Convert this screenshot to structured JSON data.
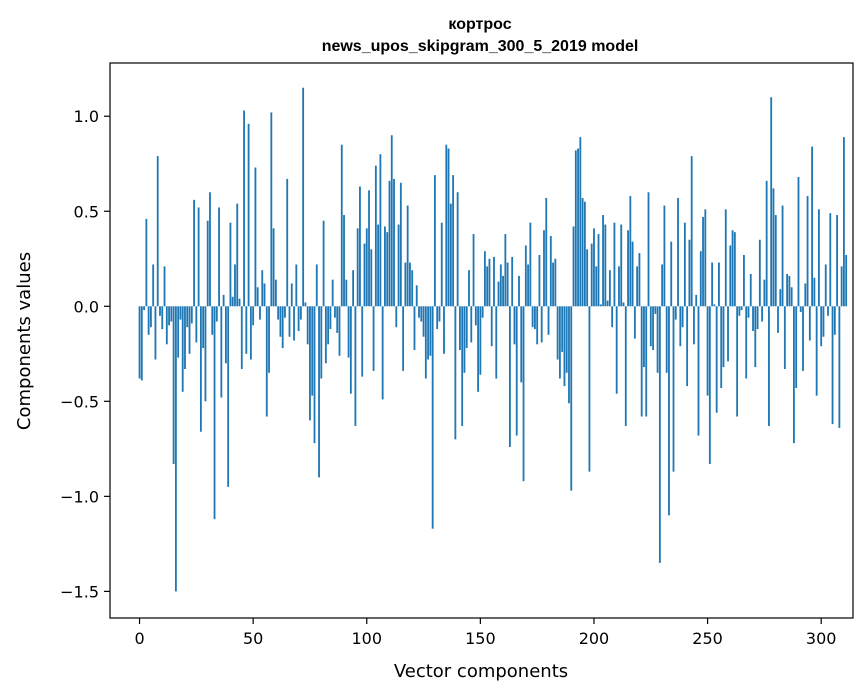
{
  "chart_data": {
    "type": "bar",
    "title_line1": "кортрос",
    "title_line2": "news_upos_skipgram_300_5_2019 model",
    "xlabel": "Vector components",
    "ylabel": "Components values",
    "xlim": [
      -13,
      314
    ],
    "ylim": [
      -1.64,
      1.28
    ],
    "xticks": [
      0,
      50,
      100,
      150,
      200,
      250,
      300
    ],
    "xtick_labels": [
      "0",
      "50",
      "100",
      "150",
      "200",
      "250",
      "300"
    ],
    "yticks": [
      1.0,
      0.5,
      0.0,
      -0.5,
      -1.0,
      -1.5
    ],
    "ytick_labels": [
      "1.0",
      "0.5",
      "0.0",
      "−0.5",
      "−1.0",
      "−1.5"
    ],
    "bar_color": "#1f77b4",
    "values": [
      -0.38,
      -0.39,
      -0.02,
      0.46,
      -0.15,
      -0.11,
      0.22,
      -0.28,
      0.79,
      -0.05,
      -0.12,
      0.21,
      -0.2,
      -0.1,
      -0.08,
      -0.83,
      -1.5,
      -0.27,
      -0.07,
      -0.45,
      -0.33,
      -0.11,
      -0.25,
      -0.09,
      0.56,
      -0.19,
      0.52,
      -0.66,
      -0.22,
      -0.5,
      0.45,
      0.6,
      -0.15,
      -1.12,
      -0.08,
      0.52,
      -0.48,
      0.06,
      -0.3,
      -0.95,
      0.44,
      0.05,
      0.22,
      0.54,
      0.04,
      -0.33,
      1.03,
      -0.25,
      0.96,
      -0.28,
      -0.1,
      0.73,
      0.1,
      -0.07,
      0.19,
      0.12,
      -0.58,
      -0.35,
      1.02,
      0.41,
      0.14,
      -0.07,
      -0.16,
      -0.22,
      -0.06,
      0.67,
      -0.16,
      0.12,
      -0.18,
      0.22,
      -0.13,
      -0.07,
      1.15,
      0.02,
      -0.2,
      -0.6,
      -0.47,
      -0.72,
      0.22,
      -0.9,
      -0.38,
      0.45,
      -0.3,
      -0.2,
      -0.12,
      0.14,
      -0.06,
      -0.14,
      -0.26,
      0.85,
      0.48,
      0.14,
      -0.27,
      -0.46,
      0.19,
      -0.63,
      0.41,
      0.63,
      -0.37,
      0.33,
      0.41,
      0.61,
      0.3,
      -0.34,
      0.74,
      0.43,
      0.8,
      -0.49,
      0.42,
      0.39,
      0.66,
      0.9,
      0.67,
      -0.11,
      0.43,
      0.65,
      -0.34,
      0.23,
      0.53,
      0.23,
      0.19,
      -0.23,
      0.11,
      -0.06,
      -0.08,
      -0.16,
      -0.38,
      -0.28,
      -0.26,
      -1.17,
      0.69,
      -0.12,
      -0.08,
      0.44,
      -0.25,
      0.85,
      0.83,
      0.54,
      0.69,
      -0.7,
      0.6,
      -0.23,
      -0.63,
      -0.35,
      -0.22,
      0.19,
      -0.19,
      0.38,
      -0.1,
      -0.45,
      -0.36,
      -0.06,
      0.29,
      0.21,
      0.25,
      -0.21,
      0.26,
      -0.38,
      0.13,
      0.22,
      0.16,
      0.38,
      0.23,
      -0.74,
      0.26,
      -0.2,
      -0.68,
      0.16,
      -0.4,
      -0.92,
      0.32,
      0.22,
      0.44,
      -0.11,
      -0.12,
      -0.2,
      0.27,
      -0.19,
      0.4,
      0.57,
      -0.15,
      0.37,
      0.23,
      0.25,
      -0.28,
      -0.38,
      -0.24,
      -0.42,
      -0.35,
      -0.51,
      -0.97,
      0.42,
      0.82,
      0.83,
      0.89,
      0.57,
      0.55,
      0.3,
      -0.87,
      0.33,
      0.41,
      0.21,
      0.38,
      0.01,
      0.48,
      0.43,
      0.03,
      0.19,
      -0.11,
      0.44,
      -0.46,
      0.21,
      0.43,
      0.02,
      -0.63,
      0.4,
      0.58,
      0.34,
      -0.17,
      0.21,
      0.28,
      -0.58,
      -0.32,
      -0.58,
      0.6,
      -0.21,
      -0.23,
      -0.04,
      -0.35,
      -1.35,
      0.22,
      0.53,
      -0.35,
      -1.1,
      0.34,
      -0.87,
      -0.07,
      0.57,
      -0.21,
      -0.11,
      0.44,
      -0.42,
      0.35,
      0.79,
      -0.2,
      0.06,
      -0.68,
      0.29,
      0.47,
      0.51,
      -0.47,
      -0.83,
      0.23,
      0.01,
      -0.56,
      0.23,
      -0.43,
      -0.32,
      0.51,
      -0.29,
      0.32,
      0.4,
      0.39,
      -0.58,
      -0.05,
      -0.02,
      0.27,
      -0.38,
      -0.06,
      0.17,
      -0.13,
      -0.32,
      -0.12,
      0.35,
      -0.08,
      0.14,
      0.66,
      -0.63,
      1.1,
      0.62,
      0.48,
      -0.14,
      0.09,
      0.53,
      -0.33,
      0.17,
      0.16,
      0.1,
      -0.72,
      -0.43,
      0.68,
      -0.03,
      -0.34,
      0.12,
      0.58,
      -0.18,
      0.84,
      0.15,
      -0.47,
      0.51,
      -0.21,
      -0.16,
      0.22,
      -0.05,
      0.49,
      -0.62,
      -0.15,
      0.48,
      -0.64,
      0.21,
      0.89,
      0.27
    ]
  }
}
